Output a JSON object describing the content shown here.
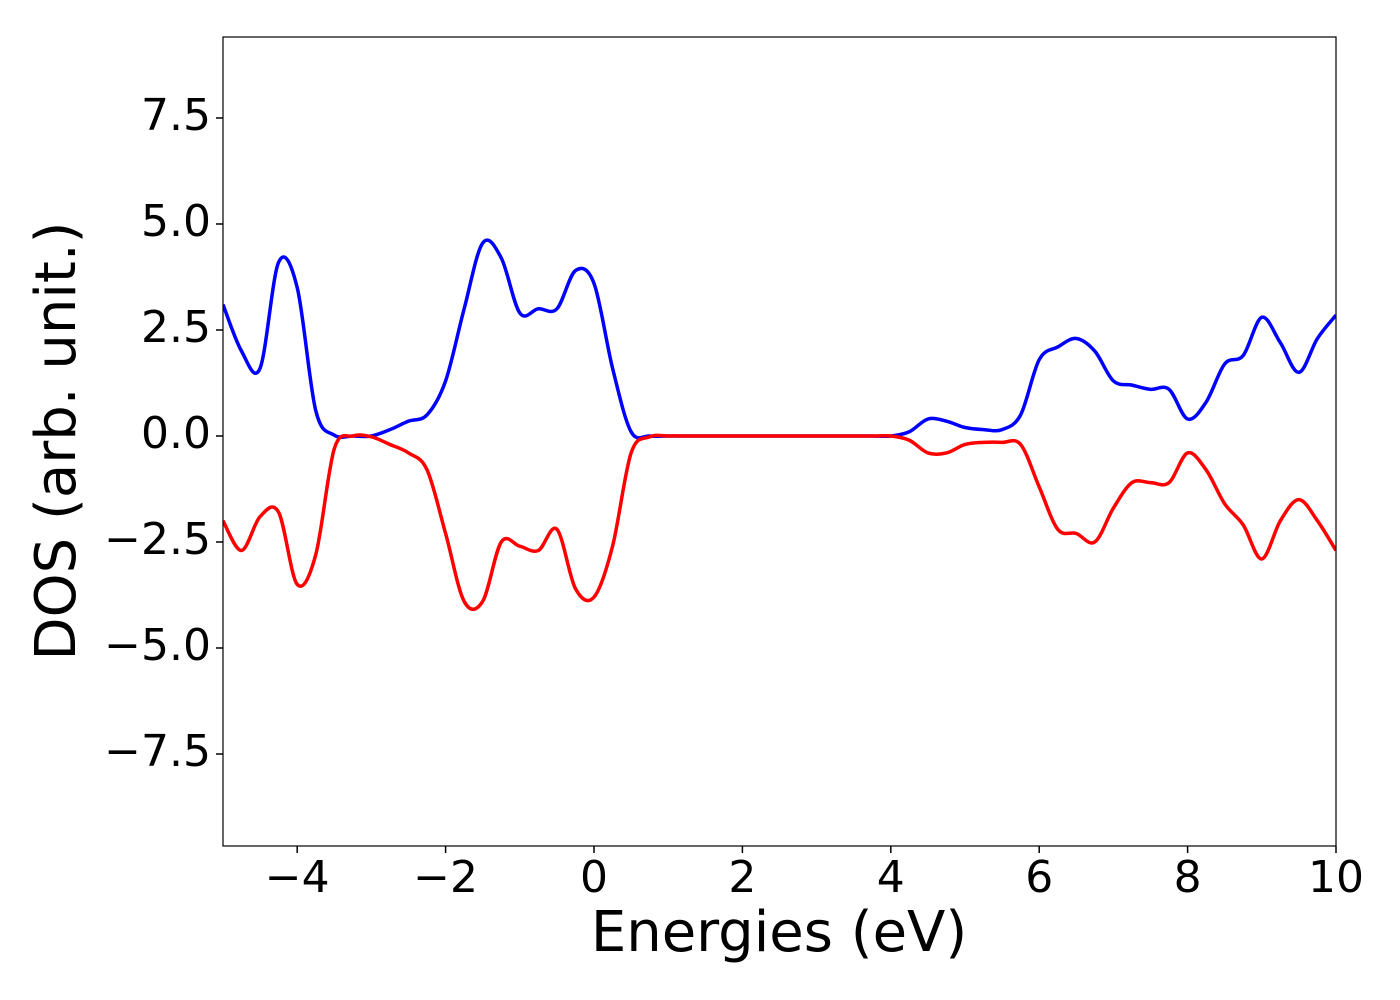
{
  "chart_data": {
    "type": "line",
    "x_label": "Energies (eV)",
    "y_label": "DOS (arb. unit.)",
    "x": [
      -5,
      -4.75,
      -4.5,
      -4.25,
      -4,
      -3.75,
      -3.5,
      -3.25,
      -3,
      -2.75,
      -2.5,
      -2.25,
      -2,
      -1.75,
      -1.5,
      -1.25,
      -1,
      -0.75,
      -0.5,
      -0.25,
      0,
      0.25,
      0.5,
      0.75,
      1,
      1.25,
      1.5,
      1.75,
      2,
      2.25,
      2.5,
      2.75,
      3,
      3.25,
      3.5,
      3.75,
      4,
      4.25,
      4.5,
      4.75,
      5,
      5.25,
      5.5,
      5.75,
      6,
      6.25,
      6.5,
      6.75,
      7,
      7.25,
      7.5,
      7.75,
      8,
      8.25,
      8.5,
      8.75,
      9,
      9.25,
      9.5,
      9.75,
      10
    ],
    "series": [
      {
        "color": "#0000ff",
        "values": [
          3.1,
          2.0,
          1.6,
          4.1,
          3.5,
          0.6,
          0.02,
          0,
          0,
          0.15,
          0.35,
          0.5,
          1.3,
          3.0,
          4.55,
          4.2,
          2.9,
          3.0,
          3.0,
          3.9,
          3.6,
          1.6,
          0.1,
          0,
          0,
          0,
          0,
          0,
          0,
          0,
          0,
          0,
          0,
          0,
          0,
          0,
          0,
          0.1,
          0.4,
          0.35,
          0.2,
          0.15,
          0.15,
          0.5,
          1.8,
          2.1,
          2.3,
          2.0,
          1.3,
          1.2,
          1.1,
          1.1,
          0.4,
          0.8,
          1.7,
          1.9,
          2.8,
          2.2,
          1.5,
          2.3,
          2.85
        ]
      },
      {
        "color": "#ff0000",
        "values": [
          -2.0,
          -2.7,
          -1.9,
          -1.8,
          -3.5,
          -2.8,
          -0.3,
          0,
          -0.02,
          -0.2,
          -0.4,
          -0.8,
          -2.3,
          -3.9,
          -3.9,
          -2.5,
          -2.6,
          -2.7,
          -2.2,
          -3.6,
          -3.8,
          -2.6,
          -0.4,
          -0.02,
          0,
          0,
          0,
          0,
          0,
          0,
          0,
          0,
          0,
          0,
          0,
          0,
          0,
          -0.1,
          -0.4,
          -0.4,
          -0.2,
          -0.15,
          -0.15,
          -0.2,
          -1.2,
          -2.2,
          -2.3,
          -2.5,
          -1.7,
          -1.1,
          -1.1,
          -1.1,
          -0.4,
          -0.8,
          -1.6,
          -2.1,
          -2.9,
          -2.0,
          -1.5,
          -2.0,
          -2.7
        ]
      }
    ],
    "xlim": [
      -5,
      10
    ],
    "ylim": [
      -9.67,
      9.41
    ],
    "xticks": [
      {
        "value": -4,
        "label": "−4"
      },
      {
        "value": -2,
        "label": "−2"
      },
      0,
      2,
      4,
      6,
      8,
      10
    ],
    "yticks": [
      {
        "value": -7.5,
        "label": "−7.5"
      },
      {
        "value": -5,
        "label": "−5.0"
      },
      {
        "value": -2.5,
        "label": "−2.5"
      },
      {
        "value": 0,
        "label": "0.0"
      },
      2.5,
      {
        "value": 5,
        "label": "5.0"
      },
      7.5
    ],
    "grid": false
  }
}
